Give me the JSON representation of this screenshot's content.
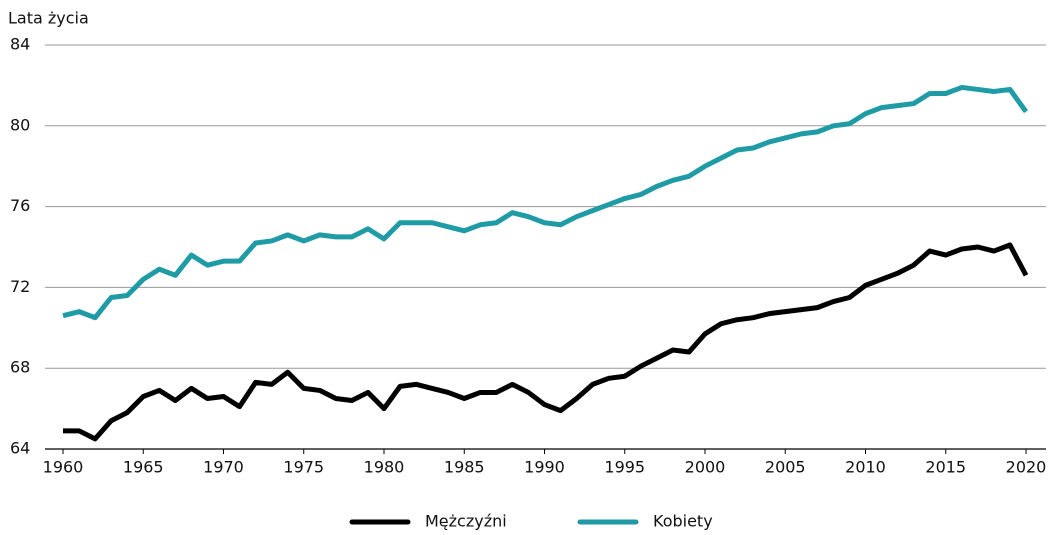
{
  "chart_data": {
    "type": "line",
    "y_label": "Lata życia",
    "x": [
      1960,
      1961,
      1962,
      1963,
      1964,
      1965,
      1966,
      1967,
      1968,
      1969,
      1970,
      1971,
      1972,
      1973,
      1974,
      1975,
      1976,
      1977,
      1978,
      1979,
      1980,
      1981,
      1982,
      1983,
      1984,
      1985,
      1986,
      1987,
      1988,
      1989,
      1990,
      1991,
      1992,
      1993,
      1994,
      1995,
      1996,
      1997,
      1998,
      1999,
      2000,
      2001,
      2002,
      2003,
      2004,
      2005,
      2006,
      2007,
      2008,
      2009,
      2010,
      2011,
      2012,
      2013,
      2014,
      2015,
      2016,
      2017,
      2018,
      2019,
      2020
    ],
    "series": [
      {
        "name": "Mężczyźni",
        "color": "#000000",
        "values": [
          64.9,
          64.9,
          64.5,
          65.4,
          65.8,
          66.6,
          66.9,
          66.4,
          67.0,
          66.5,
          66.6,
          66.1,
          67.3,
          67.2,
          67.8,
          67.0,
          66.9,
          66.5,
          66.4,
          66.8,
          66.0,
          67.1,
          67.2,
          67.0,
          66.8,
          66.5,
          66.8,
          66.8,
          67.2,
          66.8,
          66.2,
          65.9,
          66.5,
          67.2,
          67.5,
          67.6,
          68.1,
          68.5,
          68.9,
          68.8,
          69.7,
          70.2,
          70.4,
          70.5,
          70.7,
          70.8,
          70.9,
          71.0,
          71.3,
          71.5,
          72.1,
          72.4,
          72.7,
          73.1,
          73.8,
          73.6,
          73.9,
          74.0,
          73.8,
          74.1,
          72.6
        ]
      },
      {
        "name": "Kobiety",
        "color": "#1f9ba6",
        "values": [
          70.6,
          70.8,
          70.5,
          71.5,
          71.6,
          72.4,
          72.9,
          72.6,
          73.6,
          73.1,
          73.3,
          73.3,
          74.2,
          74.3,
          74.6,
          74.3,
          74.6,
          74.5,
          74.5,
          74.9,
          74.4,
          75.2,
          75.2,
          75.2,
          75.0,
          74.8,
          75.1,
          75.2,
          75.7,
          75.5,
          75.2,
          75.1,
          75.5,
          75.8,
          76.1,
          76.4,
          76.6,
          77.0,
          77.3,
          77.5,
          78.0,
          78.4,
          78.8,
          78.9,
          79.2,
          79.4,
          79.6,
          79.7,
          80.0,
          80.1,
          80.6,
          80.9,
          81.0,
          81.1,
          81.6,
          81.6,
          81.9,
          81.8,
          81.7,
          81.8,
          80.7
        ]
      }
    ],
    "xlim": [
      1960,
      2020
    ],
    "xticks": [
      1960,
      1965,
      1970,
      1975,
      1980,
      1985,
      1990,
      1995,
      2000,
      2005,
      2010,
      2015,
      2020
    ],
    "ylim": [
      64,
      84
    ],
    "yticks": [
      64,
      68,
      72,
      76,
      80,
      84
    ],
    "grid": true,
    "legend": "bottom"
  }
}
